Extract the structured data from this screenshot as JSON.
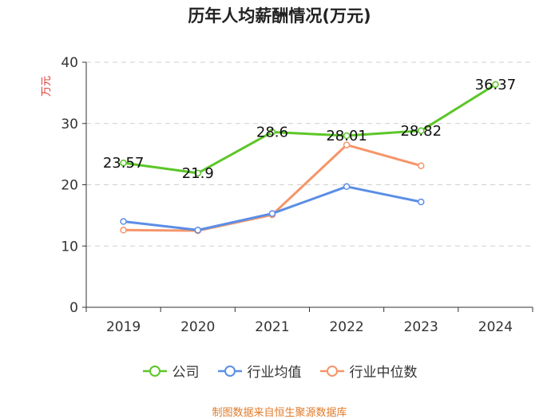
{
  "chart_data": {
    "type": "line",
    "title": "历年人均薪酬情况(万元)",
    "ylabel": "万元",
    "xlabel": "",
    "ylim": [
      0,
      40
    ],
    "yticks": [
      0,
      10,
      20,
      30,
      40
    ],
    "grid": true,
    "legend_position": "bottom",
    "categories": [
      "2019",
      "2020",
      "2021",
      "2022",
      "2023",
      "2024"
    ],
    "series": [
      {
        "name": "公司",
        "color": "#5cc628",
        "show_labels": true,
        "values": [
          23.57,
          21.9,
          28.6,
          28.01,
          28.82,
          36.37
        ]
      },
      {
        "name": "行业均值",
        "color": "#5b8ee5",
        "show_labels": false,
        "values": [
          14.0,
          12.6,
          15.3,
          19.7,
          17.2,
          null
        ]
      },
      {
        "name": "行业中位数",
        "color": "#f5956a",
        "show_labels": false,
        "values": [
          12.6,
          12.5,
          15.1,
          26.5,
          23.1,
          null
        ]
      }
    ]
  },
  "source": "制图数据来自恒生聚源数据库"
}
